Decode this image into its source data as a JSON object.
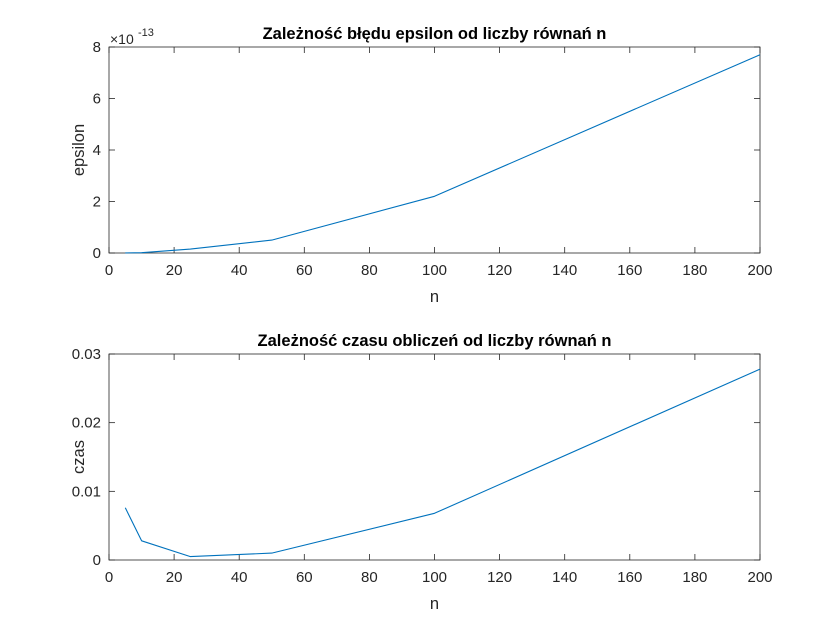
{
  "chart_data": [
    {
      "type": "line",
      "title": "Zależność błędu epsilon od liczby równań n",
      "xlabel": "n",
      "ylabel": "epsilon",
      "xlim": [
        0,
        200
      ],
      "ylim": [
        0,
        8
      ],
      "xticks": [
        "0",
        "20",
        "40",
        "60",
        "80",
        "100",
        "120",
        "140",
        "160",
        "180",
        "200"
      ],
      "yticks": [
        "0",
        "2",
        "4",
        "6",
        "8"
      ],
      "yexponent": {
        "base": "×10",
        "power": "-13"
      },
      "color": "#0072BD",
      "series": [
        {
          "x": [
            5,
            10,
            25,
            50,
            100,
            200
          ],
          "y": [
            0.002,
            0.01,
            0.15,
            0.5,
            2.2,
            7.7
          ]
        }
      ]
    },
    {
      "type": "line",
      "title": "Zależność czasu obliczeń od liczby równań n",
      "xlabel": "n",
      "ylabel": "czas",
      "xlim": [
        0,
        200
      ],
      "ylim": [
        0,
        0.03
      ],
      "xticks": [
        "0",
        "20",
        "40",
        "60",
        "80",
        "100",
        "120",
        "140",
        "160",
        "180",
        "200"
      ],
      "yticks": [
        "0",
        "0.01",
        "0.02",
        "0.03"
      ],
      "color": "#0072BD",
      "series": [
        {
          "x": [
            5,
            10,
            25,
            50,
            100,
            200
          ],
          "y": [
            0.0076,
            0.0028,
            0.0005,
            0.001,
            0.0068,
            0.0278
          ]
        }
      ]
    }
  ]
}
